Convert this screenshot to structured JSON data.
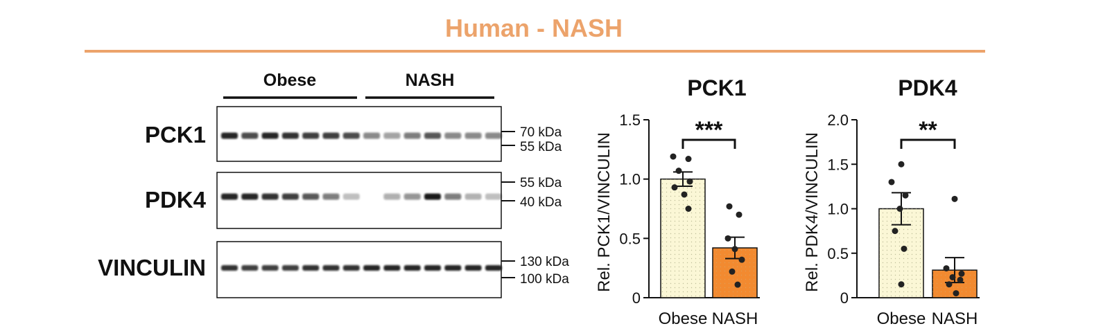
{
  "figure_title": "Human - NASH",
  "blot": {
    "groups": [
      "Obese",
      "NASH"
    ],
    "rows": [
      {
        "label": "PCK1",
        "markers": [
          "70 kDa",
          "55 kDa"
        ]
      },
      {
        "label": "PDK4",
        "markers": [
          "55 kDa",
          "40 kDa"
        ]
      },
      {
        "label": "VINCULIN",
        "markers": [
          "130 kDa",
          "100 kDa"
        ]
      }
    ],
    "lane_intensity": {
      "PCK1": [
        0.9,
        0.75,
        0.9,
        0.85,
        0.8,
        0.8,
        0.75,
        0.5,
        0.4,
        0.55,
        0.7,
        0.5,
        0.5,
        0.5
      ],
      "PDK4": [
        0.9,
        0.9,
        0.85,
        0.8,
        0.7,
        0.55,
        0.25,
        0.0,
        0.35,
        0.45,
        0.95,
        0.55,
        0.3,
        0.25
      ],
      "VINCULIN": [
        0.85,
        0.8,
        0.8,
        0.8,
        0.85,
        0.85,
        0.85,
        0.9,
        0.9,
        0.9,
        0.9,
        0.9,
        0.9,
        0.9
      ]
    }
  },
  "colors": {
    "accent": "#ECA36B",
    "obese_fill": "#FBF7D6",
    "nash_fill": "#F28A30",
    "ink": "#111111"
  },
  "chart_data": [
    {
      "type": "bar",
      "title": "PCK1",
      "categories": [
        "Obese",
        "NASH"
      ],
      "values": [
        1.0,
        0.42
      ],
      "errors": [
        0.06,
        0.09
      ],
      "ylabel": "Rel. PCK1/VINCULIN",
      "ylim": [
        0,
        1.5
      ],
      "yticks": [
        0,
        0.5,
        1.0,
        1.5
      ],
      "ytick_labels": [
        "0",
        "0.5",
        "1.0",
        "1.5"
      ],
      "points": [
        [
          1.19,
          1.17,
          1.07,
          0.98,
          0.93,
          0.87,
          0.75
        ],
        [
          0.77,
          0.7,
          0.5,
          0.41,
          0.32,
          0.22,
          0.11
        ]
      ],
      "significance": "***"
    },
    {
      "type": "bar",
      "title": "PDK4",
      "categories": [
        "Obese",
        "NASH"
      ],
      "values": [
        1.0,
        0.31
      ],
      "errors": [
        0.18,
        0.14
      ],
      "ylabel": "Rel. PDK4/VINCULIN",
      "ylim": [
        0,
        2.0
      ],
      "yticks": [
        0,
        0.5,
        1.0,
        1.5,
        2.0
      ],
      "ytick_labels": [
        "0",
        "0.5",
        "1.0",
        "1.5",
        "2.0"
      ],
      "points": [
        [
          1.5,
          1.3,
          1.15,
          1.0,
          0.75,
          0.55,
          0.15
        ],
        [
          1.11,
          0.33,
          0.27,
          0.23,
          0.2,
          0.15,
          0.05
        ]
      ],
      "significance": "**"
    }
  ]
}
